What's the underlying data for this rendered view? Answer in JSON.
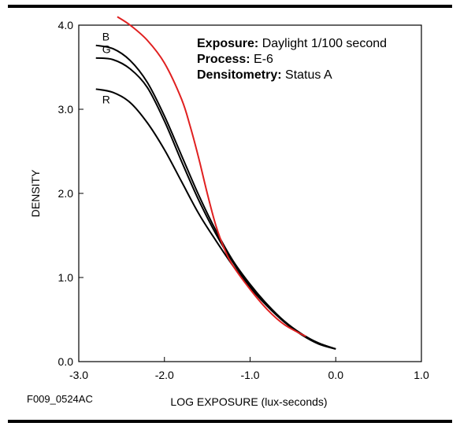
{
  "chart_data": {
    "type": "line",
    "xlabel": "LOG EXPOSURE (lux-seconds)",
    "ylabel": "DENSITY",
    "xlim": [
      -3.0,
      1.0
    ],
    "ylim": [
      0.0,
      4.0
    ],
    "xticks": [
      "-3.0",
      "-2.0",
      "-1.0",
      "0.0",
      "1.0"
    ],
    "yticks": [
      "0.0",
      "1.0",
      "2.0",
      "3.0",
      "4.0"
    ],
    "grid": false,
    "annotations": [
      {
        "label": "Exposure:",
        "text": " Daylight 1/100 second"
      },
      {
        "label": "Process:",
        "text": " E-6"
      },
      {
        "label": "Densitometry:",
        "text": " Status A"
      }
    ],
    "series": [
      {
        "name": "B",
        "color": "#000000",
        "x": [
          -2.8,
          -2.6,
          -2.4,
          -2.2,
          -2.0,
          -1.8,
          -1.6,
          -1.4,
          -1.2,
          -1.0,
          -0.8,
          -0.6,
          -0.4,
          -0.2,
          0.0
        ],
        "y": [
          3.76,
          3.72,
          3.58,
          3.32,
          2.92,
          2.45,
          1.98,
          1.56,
          1.2,
          0.92,
          0.68,
          0.48,
          0.33,
          0.22,
          0.15
        ]
      },
      {
        "name": "G",
        "color": "#000000",
        "x": [
          -2.8,
          -2.6,
          -2.4,
          -2.2,
          -2.0,
          -1.8,
          -1.6,
          -1.4,
          -1.2,
          -1.0,
          -0.8,
          -0.6,
          -0.4,
          -0.2,
          0.0
        ],
        "y": [
          3.61,
          3.59,
          3.48,
          3.26,
          2.86,
          2.38,
          1.92,
          1.52,
          1.18,
          0.9,
          0.67,
          0.48,
          0.33,
          0.22,
          0.15
        ]
      },
      {
        "name": "R",
        "color": "#000000",
        "x": [
          -2.8,
          -2.6,
          -2.4,
          -2.2,
          -2.0,
          -1.8,
          -1.6,
          -1.4,
          -1.2,
          -1.0,
          -0.8,
          -0.6,
          -0.4,
          -0.2,
          0.0
        ],
        "y": [
          3.24,
          3.2,
          3.08,
          2.84,
          2.52,
          2.14,
          1.76,
          1.44,
          1.14,
          0.88,
          0.66,
          0.47,
          0.32,
          0.21,
          0.15
        ]
      },
      {
        "name": "",
        "color": "#e02020",
        "x": [
          -2.55,
          -2.4,
          -2.2,
          -2.0,
          -1.8,
          -1.7,
          -1.6,
          -1.5,
          -1.4,
          -1.3,
          -1.2,
          -1.0,
          -0.8,
          -0.6,
          -0.35
        ],
        "y": [
          4.1,
          4.0,
          3.82,
          3.55,
          3.12,
          2.8,
          2.42,
          2.0,
          1.62,
          1.34,
          1.14,
          0.86,
          0.62,
          0.44,
          0.3
        ]
      }
    ]
  },
  "footer": {
    "code": "F009_0524AC"
  }
}
